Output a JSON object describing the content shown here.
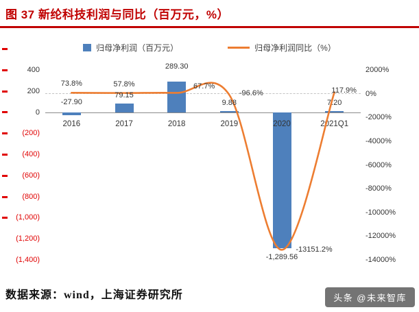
{
  "title": "图 37 新纶科技利润与同比（百万元，%）",
  "legend": [
    {
      "label": "归母净利润（百万元）",
      "marker": "bar-swatch-icon"
    },
    {
      "label": "归母净利润同比（%）",
      "marker": "line-swatch-icon"
    }
  ],
  "source": "数据来源：wind，上海证券研究所",
  "watermark": "头条 @未来智库",
  "colors": {
    "bar": "#4e80bc",
    "line": "#ed7d31",
    "title": "#c00000",
    "axis_negative": "#e00000",
    "axis_text": "#333333"
  },
  "chart_data": {
    "type": "combo",
    "title": "新纶科技利润与同比（百万元，%）",
    "categories": [
      "2016",
      "2017",
      "2018",
      "2019",
      "2020",
      "2021Q1"
    ],
    "series": [
      {
        "name": "归母净利润（百万元）",
        "type": "bar",
        "axis": "left",
        "values": [
          -27.9,
          79.15,
          289.3,
          9.88,
          -1289.56,
          7.2
        ],
        "labels": [
          "-27.90",
          "79.15",
          "289.30",
          "9.88",
          "-1,289.56",
          "7.20"
        ]
      },
      {
        "name": "归母净利润同比（%）",
        "type": "line",
        "axis": "right",
        "values": [
          73.8,
          57.8,
          67.7,
          -96.6,
          -13151.2,
          117.9
        ],
        "labels": [
          "73.8%",
          "57.8%",
          "67.7%",
          "-96.6%",
          "-13151.2%",
          "117.9%"
        ]
      }
    ],
    "left_axis": {
      "min": -1400,
      "max": 400,
      "ticks": [
        400,
        200,
        0,
        -200,
        -400,
        -600,
        -800,
        -1000,
        -1200,
        -1400
      ],
      "tick_labels": [
        "400",
        "200",
        "0",
        "(200)",
        "(400)",
        "(600)",
        "(800)",
        "(1,000)",
        "(1,200)",
        "(1,400)"
      ]
    },
    "right_axis": {
      "min": -14000,
      "max": 2000,
      "ticks": [
        2000,
        0,
        -2000,
        -4000,
        -6000,
        -8000,
        -10000,
        -12000,
        -14000
      ],
      "tick_labels": [
        "2000%",
        "0%",
        "-2000%",
        "-4000%",
        "-6000%",
        "-8000%",
        "-10000%",
        "-12000%",
        "-14000%"
      ]
    },
    "gridlines": "dashed line at 0% only",
    "legend_position": "top"
  }
}
